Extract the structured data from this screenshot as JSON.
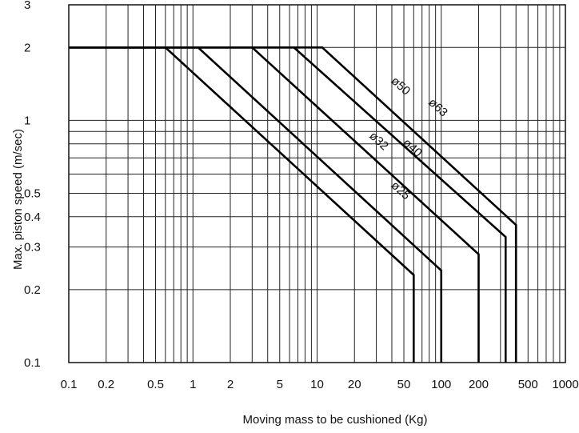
{
  "chart_data": {
    "type": "line",
    "title": "",
    "xlabel": "Moving mass to be cushioned (Kg)",
    "ylabel": "Max. piston speed (m/sec)",
    "x_scale": "log",
    "y_scale": "log",
    "xlim": [
      0.1,
      1000
    ],
    "ylim": [
      0.1,
      3
    ],
    "grid": true,
    "x_ticks": [
      {
        "value": 0.1,
        "label": "0.1"
      },
      {
        "value": 0.2,
        "label": "0.2"
      },
      {
        "value": 0.5,
        "label": "0.5"
      },
      {
        "value": 1,
        "label": "1"
      },
      {
        "value": 2,
        "label": "2"
      },
      {
        "value": 5,
        "label": "5"
      },
      {
        "value": 10,
        "label": "10"
      },
      {
        "value": 20,
        "label": "20"
      },
      {
        "value": 50,
        "label": "50"
      },
      {
        "value": 100,
        "label": "100"
      },
      {
        "value": 200,
        "label": "200"
      },
      {
        "value": 500,
        "label": "500"
      },
      {
        "value": 1000,
        "label": "1000"
      }
    ],
    "y_ticks": [
      {
        "value": 0.1,
        "label": "0.1"
      },
      {
        "value": 0.2,
        "label": "0.2"
      },
      {
        "value": 0.3,
        "label": "0.3"
      },
      {
        "value": 0.4,
        "label": "0.4"
      },
      {
        "value": 0.5,
        "label": "0.5"
      },
      {
        "value": 1,
        "label": "1"
      },
      {
        "value": 2,
        "label": "2"
      },
      {
        "value": 3,
        "label": "3"
      }
    ],
    "series": [
      {
        "name": "ø25",
        "x": [
          0.1,
          0.6,
          60,
          60
        ],
        "y": [
          2,
          2,
          0.23,
          0.1
        ],
        "label_at": [
          45,
          0.5
        ]
      },
      {
        "name": "ø32",
        "x": [
          0.1,
          1.1,
          100,
          100
        ],
        "y": [
          2,
          2,
          0.24,
          0.1
        ],
        "label_at": [
          30,
          0.8
        ]
      },
      {
        "name": "ø40",
        "x": [
          0.1,
          3,
          200,
          200
        ],
        "y": [
          2,
          2,
          0.28,
          0.1
        ],
        "label_at": [
          56,
          0.75
        ]
      },
      {
        "name": "ø50",
        "x": [
          0.1,
          6.5,
          330,
          330
        ],
        "y": [
          2,
          2,
          0.33,
          0.1
        ],
        "label_at": [
          45,
          1.35
        ]
      },
      {
        "name": "ø63",
        "x": [
          0.1,
          11,
          400,
          400
        ],
        "y": [
          2,
          2,
          0.37,
          0.1
        ],
        "label_at": [
          90,
          1.1
        ]
      }
    ]
  }
}
